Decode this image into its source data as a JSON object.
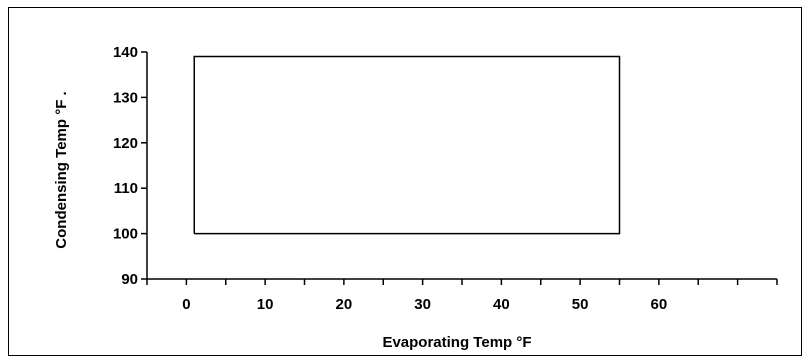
{
  "chart_data": {
    "type": "line",
    "title": "",
    "xlabel": "Evaporating Temp °F",
    "ylabel": "Condensing Temp °F .",
    "xlim": [
      -5,
      75
    ],
    "ylim": [
      90,
      140
    ],
    "x_ticks": [
      0,
      10,
      20,
      30,
      40,
      50,
      60
    ],
    "y_ticks": [
      90,
      100,
      110,
      120,
      130,
      140
    ],
    "grid": false,
    "legend": "none",
    "series": [
      {
        "x": [
          1,
          55,
          55,
          1,
          1
        ],
        "y": [
          100,
          100,
          139,
          139,
          100
        ]
      }
    ],
    "colors": {
      "line": "#000000",
      "axis": "#000000",
      "background": "#ffffff"
    }
  }
}
